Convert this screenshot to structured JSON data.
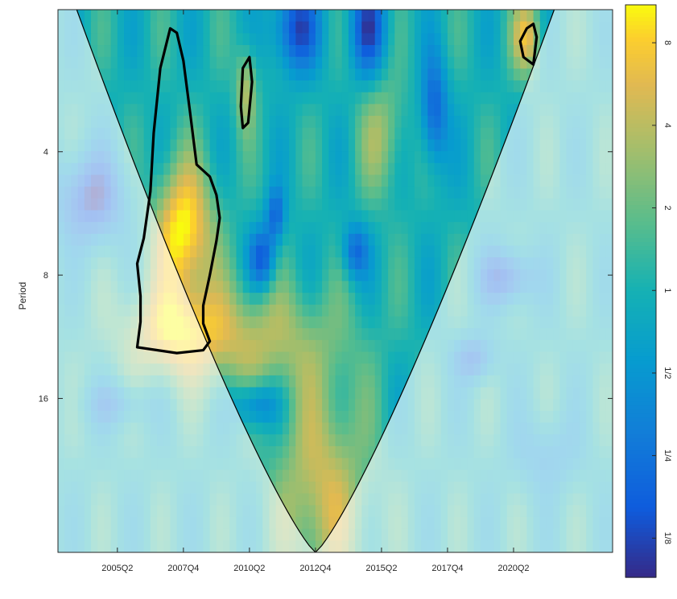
{
  "chart_data": {
    "type": "heatmap",
    "kind": "wavelet coherence scalogram",
    "title": "",
    "xlabel": "",
    "ylabel": "Period",
    "x_ticks": [
      "2005Q2",
      "2007Q4",
      "2010Q2",
      "2012Q4",
      "2015Q2",
      "2017Q4",
      "2020Q2"
    ],
    "x_tick_quarter_index": [
      9,
      19,
      29,
      39,
      49,
      59,
      69
    ],
    "x_range_quarters": [
      0,
      84
    ],
    "y_ticks": [
      4,
      8,
      16
    ],
    "y_range_period": [
      1.8,
      38
    ],
    "y_scale": "log2, period increases downward",
    "colorbar": {
      "labels": [
        "8",
        "4",
        "2",
        "1",
        "1/2",
        "1/4",
        "1/8"
      ],
      "values": [
        8,
        4,
        2,
        1,
        0.5,
        0.25,
        0.125
      ],
      "range": [
        0.09,
        11
      ],
      "scale": "log2",
      "colormap": "parula",
      "placement": "right"
    },
    "cone_of_influence": {
      "vertex_quarter": 39,
      "vertex_period": 38,
      "note": "region outside the cone is shaded pale"
    },
    "significance_contours": [
      {
        "name": "main",
        "points": [
          [
            17,
            2.0
          ],
          [
            18,
            2.05
          ],
          [
            19,
            2.4
          ],
          [
            20,
            3.2
          ],
          [
            21,
            4.3
          ],
          [
            23,
            4.6
          ],
          [
            24,
            5.1
          ],
          [
            24.5,
            5.8
          ],
          [
            24,
            6.6
          ],
          [
            23,
            8.0
          ],
          [
            22,
            9.5
          ],
          [
            22,
            10.5
          ],
          [
            23,
            11.6
          ],
          [
            22,
            12.2
          ],
          [
            18,
            12.4
          ],
          [
            12,
            12.0
          ],
          [
            12.5,
            10.4
          ],
          [
            12.5,
            9.0
          ],
          [
            12,
            7.5
          ],
          [
            13,
            6.5
          ],
          [
            14,
            5.0
          ],
          [
            14.5,
            3.6
          ],
          [
            15.5,
            2.5
          ]
        ]
      },
      {
        "name": "small-mid",
        "points": [
          [
            28,
            2.5
          ],
          [
            29,
            2.35
          ],
          [
            29.4,
            2.7
          ],
          [
            28.8,
            3.4
          ],
          [
            28,
            3.5
          ],
          [
            27.7,
            3.1
          ]
        ]
      },
      {
        "name": "small-right",
        "points": [
          [
            71,
            2.0
          ],
          [
            72,
            1.95
          ],
          [
            72.5,
            2.1
          ],
          [
            72,
            2.45
          ],
          [
            70.5,
            2.35
          ],
          [
            70,
            2.15
          ]
        ]
      }
    ],
    "colors": {
      "low": "#352a87",
      "mid": "#10bfb2",
      "high": "#f9fb0e",
      "contour": "#000000"
    }
  }
}
